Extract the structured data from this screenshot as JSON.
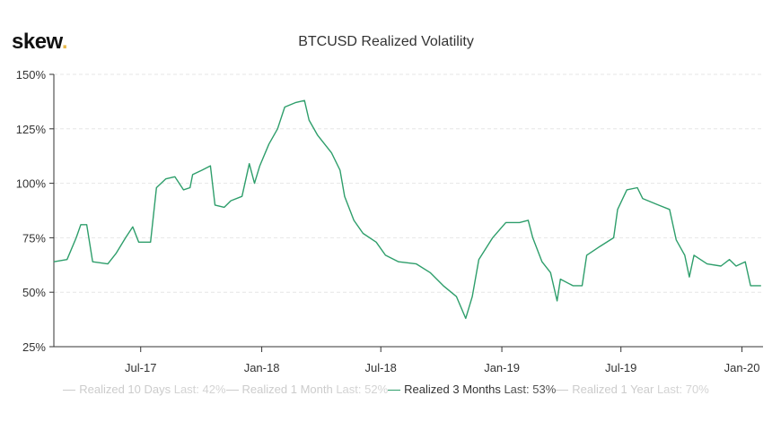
{
  "logo": {
    "text": "skew",
    "dot": "."
  },
  "chart_data": {
    "type": "line",
    "title": "BTCUSD Realized Volatility",
    "ylim": [
      25,
      150
    ],
    "yticks": [
      25,
      50,
      75,
      100,
      125,
      150
    ],
    "ytick_labels": [
      "25%",
      "50%",
      "75%",
      "100%",
      "125%",
      "150%"
    ],
    "xlim": [
      "2017-02-19",
      "2020-02-02"
    ],
    "xticks": [
      "2017-07-01",
      "2018-01-01",
      "2018-07-01",
      "2019-01-01",
      "2019-07-01",
      "2020-01-01"
    ],
    "xtick_labels": [
      "Jul-17",
      "Jan-18",
      "Jul-18",
      "Jan-19",
      "Jul-19",
      "Jan-20"
    ],
    "grid": true,
    "legend_position": "bottom",
    "line_color": "#2e9e6b",
    "legend": [
      {
        "name": "Realized 10 Days",
        "last": "Last: 42%",
        "visible": false
      },
      {
        "name": "Realized 1 Month",
        "last": "Last: 52%",
        "visible": false
      },
      {
        "name": "Realized 3 Months",
        "last": "Last: 53%",
        "visible": true
      },
      {
        "name": "Realized 1 Year",
        "last": "Last: 70%",
        "visible": false
      }
    ],
    "series": [
      {
        "name": "Realized 3 Months",
        "x": [
          "2017-02-19",
          "2017-03-11",
          "2017-03-25",
          "2017-04-01",
          "2017-04-10",
          "2017-04-19",
          "2017-05-12",
          "2017-05-25",
          "2017-06-08",
          "2017-06-19",
          "2017-06-28",
          "2017-07-16",
          "2017-07-25",
          "2017-08-08",
          "2017-08-22",
          "2017-09-04",
          "2017-09-14",
          "2017-09-18",
          "2017-10-02",
          "2017-10-15",
          "2017-10-22",
          "2017-11-05",
          "2017-11-15",
          "2017-12-02",
          "2017-12-13",
          "2017-12-21",
          "2017-12-29",
          "2018-01-12",
          "2018-01-25",
          "2018-02-05",
          "2018-02-21",
          "2018-03-07",
          "2018-03-14",
          "2018-03-27",
          "2018-04-17",
          "2018-04-30",
          "2018-05-07",
          "2018-05-21",
          "2018-06-04",
          "2018-06-24",
          "2018-07-08",
          "2018-07-28",
          "2018-08-24",
          "2018-09-14",
          "2018-10-04",
          "2018-10-24",
          "2018-11-07",
          "2018-11-17",
          "2018-11-27",
          "2018-12-18",
          "2019-01-07",
          "2019-01-28",
          "2019-02-10",
          "2019-02-17",
          "2019-03-03",
          "2019-03-16",
          "2019-03-26",
          "2019-03-31",
          "2019-04-19",
          "2019-05-03",
          "2019-05-10",
          "2019-05-30",
          "2019-06-20",
          "2019-06-26",
          "2019-07-10",
          "2019-07-26",
          "2019-08-03",
          "2019-08-27",
          "2019-09-13",
          "2019-09-23",
          "2019-10-06",
          "2019-10-13",
          "2019-10-20",
          "2019-11-09",
          "2019-11-30",
          "2019-12-13",
          "2019-12-23",
          "2020-01-06",
          "2020-01-14",
          "2020-01-30"
        ],
        "values": [
          64,
          65,
          75,
          81,
          81,
          64,
          63,
          68,
          75,
          80,
          73,
          73,
          98,
          102,
          103,
          97,
          98,
          104,
          106,
          108,
          90,
          89,
          92,
          94,
          109,
          100,
          108,
          118,
          125,
          135,
          137,
          138,
          129,
          122,
          114,
          106,
          94,
          83,
          77,
          73,
          67,
          64,
          63,
          59,
          53,
          48,
          38,
          48,
          65,
          75,
          82,
          82,
          83,
          75,
          64,
          59,
          46,
          56,
          53,
          53,
          67,
          71,
          75,
          88,
          97,
          98,
          93,
          90,
          88,
          74,
          67,
          57,
          67,
          63,
          62,
          65,
          62,
          64,
          53,
          53
        ]
      }
    ]
  }
}
